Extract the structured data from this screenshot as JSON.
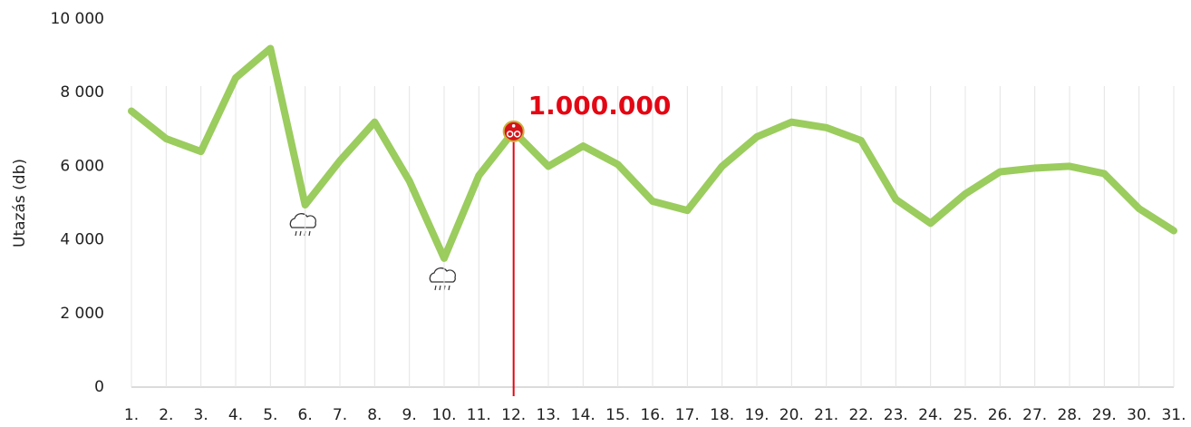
{
  "chart_data": {
    "type": "line",
    "y_label": "Utazás (db)",
    "categories": [
      "1.",
      "2.",
      "3.",
      "4.",
      "5.",
      "6.",
      "7.",
      "8.",
      "9.",
      "10.",
      "11.",
      "12.",
      "13.",
      "14.",
      "15.",
      "16.",
      "17.",
      "18.",
      "19.",
      "20.",
      "21.",
      "22.",
      "23.",
      "24.",
      "25.",
      "26.",
      "27.",
      "28.",
      "29.",
      "30.",
      "31."
    ],
    "series": [
      {
        "name": "Utazás",
        "color": "#9bcc5e",
        "values": [
          7500,
          6750,
          6400,
          8400,
          9200,
          4950,
          6150,
          7200,
          5600,
          3500,
          5750,
          6950,
          6000,
          6550,
          6050,
          5050,
          4800,
          6000,
          6800,
          7200,
          7050,
          6700,
          5100,
          4450,
          5250,
          5850,
          5950,
          6000,
          5800,
          4850,
          4250
        ]
      }
    ],
    "ylim": [
      0,
      10000
    ],
    "yticks": [
      0,
      {
        "value": 2000,
        "label": "2 000"
      },
      {
        "value": 4000,
        "label": "4 000"
      },
      {
        "value": 6000,
        "label": "6 000"
      },
      {
        "value": 8000,
        "label": "8 000"
      },
      {
        "value": 10000,
        "label": "10 000"
      }
    ],
    "annotation": "1.000.000",
    "grid": true
  }
}
